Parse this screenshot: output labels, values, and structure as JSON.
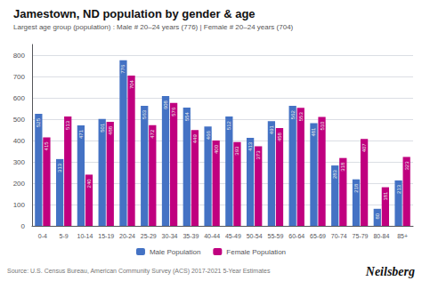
{
  "chart_data": {
    "type": "bar",
    "title": "Jamestown, ND population by gender & age",
    "subtitle": "Largest age group (population) : Male # 20–24 years (776) | Female # 20–24 years (704)",
    "categories": [
      "0-4",
      "5-9",
      "10-14",
      "15-19",
      "20-24",
      "25-29",
      "30-34",
      "35-39",
      "40-44",
      "45-49",
      "50-54",
      "55-59",
      "60-64",
      "65-69",
      "70-74",
      "75-79",
      "80-84",
      "85+"
    ],
    "series": [
      {
        "name": "Male Population",
        "color": "#4472C4",
        "values": [
          525,
          313,
          471,
          501,
          776,
          563,
          608,
          554,
          466,
          512,
          413,
          491,
          562,
          481,
          283,
          218,
          80,
          213
        ]
      },
      {
        "name": "Female Population",
        "color": "#C0007F",
        "values": [
          415,
          513,
          240,
          488,
          704,
          472,
          576,
          449,
          400,
          393,
          373,
          458,
          553,
          510,
          318,
          407,
          181,
          323
        ]
      }
    ],
    "ylim": [
      0,
      850
    ],
    "yticks": [
      0,
      100,
      200,
      300,
      400,
      500,
      600,
      700,
      800
    ],
    "grid": true,
    "legend": "bottom",
    "data_labels": true,
    "annotations": [
      "Source: U.S. Census Bureau, American Community Survey (ACS) 2017-2021 5-Year Estimates",
      "Neilsberg"
    ]
  }
}
